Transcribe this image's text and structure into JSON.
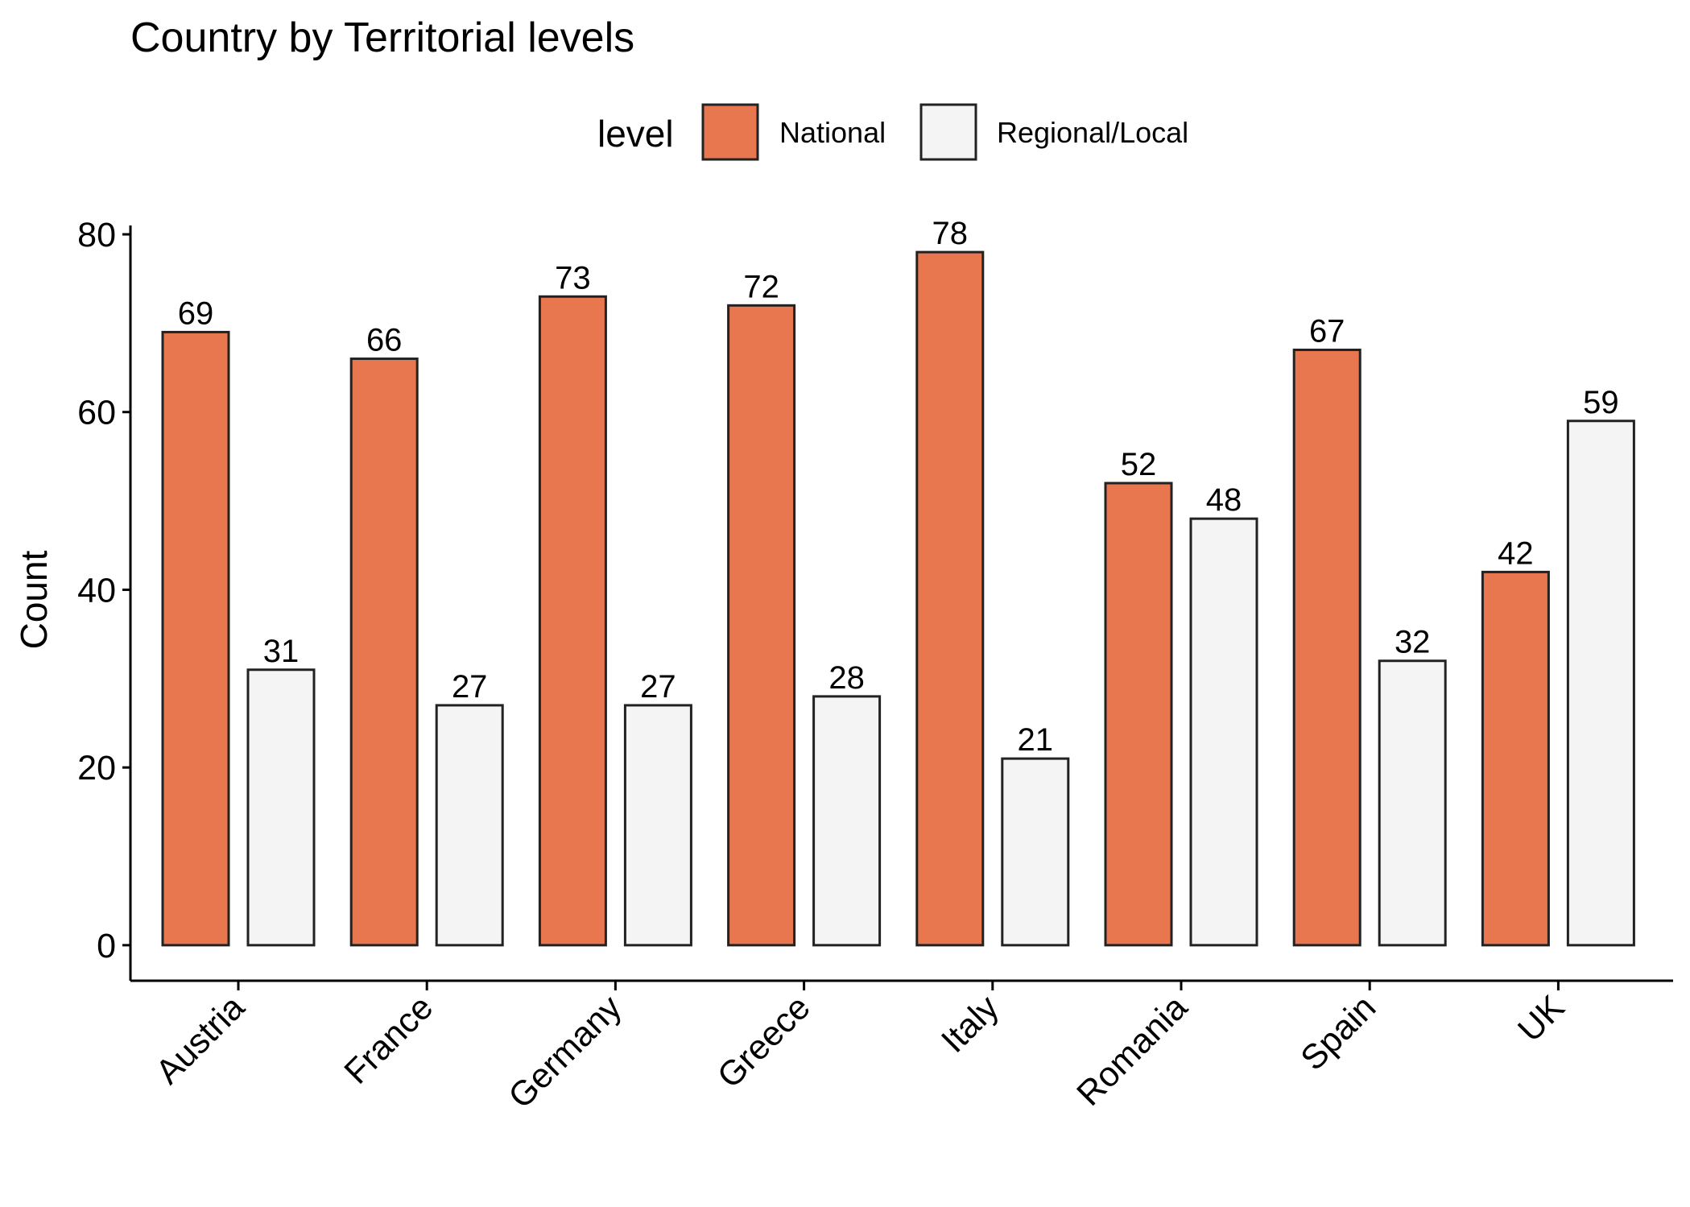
{
  "chart_data": {
    "type": "bar",
    "title": "Country by Territorial levels",
    "xlabel": "",
    "ylabel": "Count",
    "legend_title": "level",
    "legend_position": "top",
    "grid": false,
    "ylim": [
      -4,
      81
    ],
    "yticks": [
      "0",
      "20",
      "40",
      "60",
      "80"
    ],
    "categories": [
      "Austria",
      "France",
      "Germany",
      "Greece",
      "Italy",
      "Romania",
      "Spain",
      "UK"
    ],
    "series": [
      {
        "name": "National",
        "color": "#E8764F",
        "values": [
          69,
          66,
          73,
          72,
          78,
          52,
          67,
          42
        ]
      },
      {
        "name": "Regional/Local",
        "color": "#F4F4F4",
        "values": [
          31,
          27,
          27,
          28,
          21,
          48,
          32,
          59
        ]
      }
    ]
  }
}
